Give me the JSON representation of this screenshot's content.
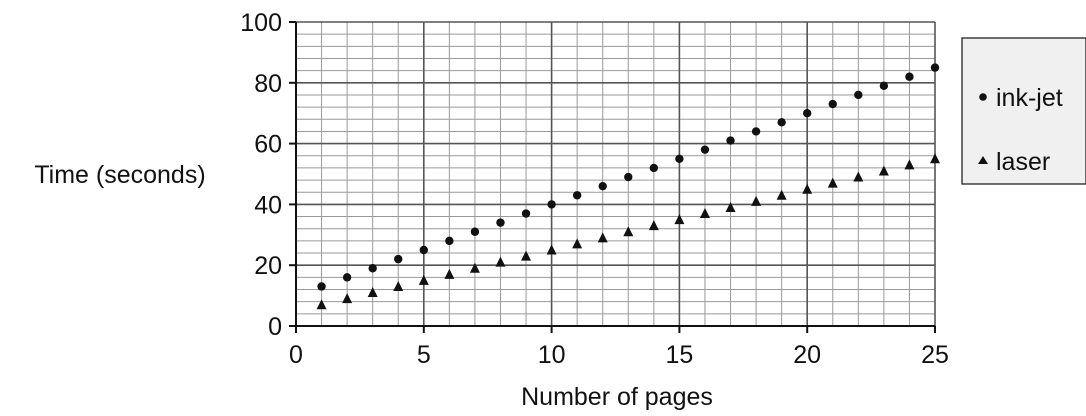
{
  "chart_data": {
    "type": "scatter",
    "title": "",
    "xlabel": "Number of pages",
    "ylabel": "Time (seconds)",
    "xlim": [
      0,
      25
    ],
    "ylim": [
      0,
      100
    ],
    "x_ticks": [
      0,
      5,
      10,
      15,
      20,
      25
    ],
    "y_ticks": [
      0,
      20,
      40,
      60,
      80,
      100
    ],
    "grid": true,
    "legend_position": "right",
    "series": [
      {
        "name": "ink-jet",
        "marker": "circle",
        "color": "#111111",
        "x": [
          1,
          2,
          3,
          4,
          5,
          6,
          7,
          8,
          9,
          10,
          11,
          12,
          13,
          14,
          15,
          16,
          17,
          18,
          19,
          20,
          21,
          22,
          23,
          24,
          25
        ],
        "y": [
          13,
          16,
          19,
          22,
          25,
          28,
          31,
          34,
          37,
          40,
          43,
          46,
          49,
          52,
          55,
          58,
          61,
          64,
          67,
          70,
          73,
          76,
          79,
          82,
          85
        ]
      },
      {
        "name": "laser",
        "marker": "triangle",
        "color": "#111111",
        "x": [
          1,
          2,
          3,
          4,
          5,
          6,
          7,
          8,
          9,
          10,
          11,
          12,
          13,
          14,
          15,
          16,
          17,
          18,
          19,
          20,
          21,
          22,
          23,
          24,
          25
        ],
        "y": [
          7,
          9,
          11,
          13,
          15,
          17,
          19,
          21,
          23,
          25,
          27,
          29,
          31,
          33,
          35,
          37,
          39,
          41,
          43,
          45,
          47,
          49,
          51,
          53,
          55
        ]
      }
    ]
  }
}
